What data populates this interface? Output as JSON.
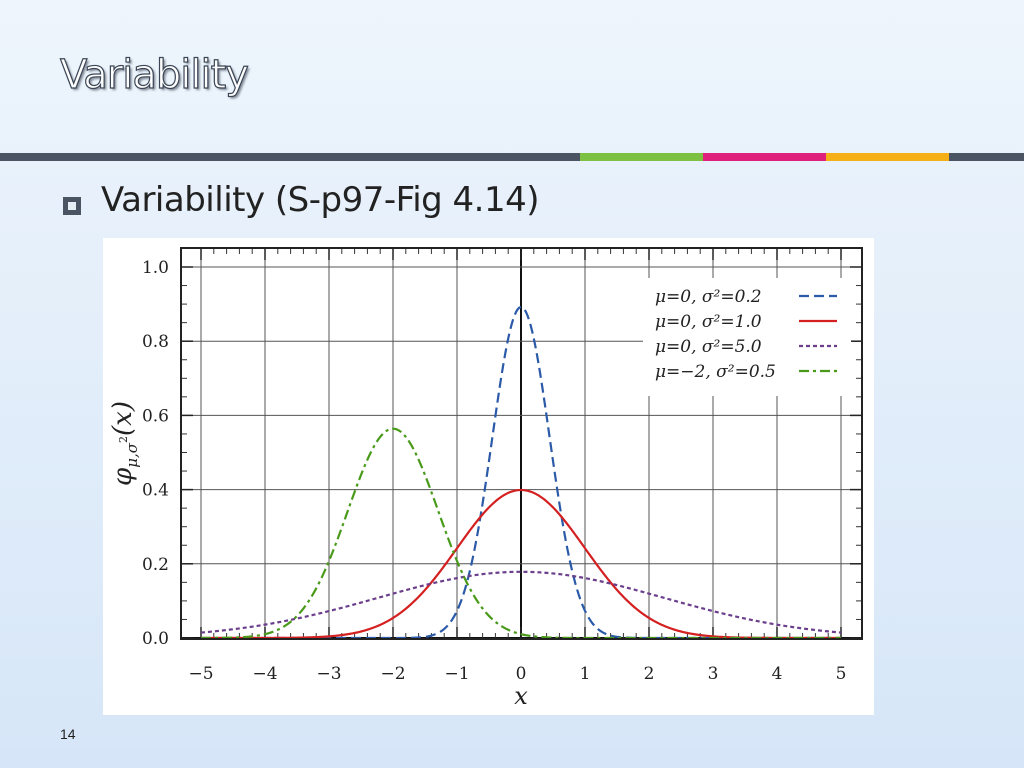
{
  "slide": {
    "title": "Variability",
    "bullet": "Variability (S-p97-Fig 4.14)",
    "page_number": "14",
    "accent_colors": [
      "#4a5462",
      "#7dc142",
      "#e0207d",
      "#f5b017",
      "#4a5462"
    ]
  },
  "chart_data": {
    "type": "line",
    "xlabel": "x",
    "ylabel_parts": {
      "base": "φ",
      "sub": "μ,σ",
      "sup": "2",
      "tail": "(x)"
    },
    "xlim": [
      -5,
      5
    ],
    "ylim": [
      0,
      1.0
    ],
    "x_ticks": [
      -5,
      -4,
      -3,
      -2,
      -1,
      0,
      1,
      2,
      3,
      4,
      5
    ],
    "x_tick_labels": [
      "−5",
      "−4",
      "−3",
      "−2",
      "−1",
      "0",
      "1",
      "2",
      "3",
      "4",
      "5"
    ],
    "y_ticks": [
      0.0,
      0.2,
      0.4,
      0.6,
      0.8,
      1.0
    ],
    "y_tick_labels": [
      "0.0",
      "0.2",
      "0.4",
      "0.6",
      "0.8",
      "1.0"
    ],
    "grid": true,
    "legend_position": "top-right",
    "series": [
      {
        "name": "μ=0,     σ²=0.2",
        "mu": 0,
        "var": 0.2,
        "color": "#2b5aa8",
        "dash": "dashed"
      },
      {
        "name": "μ=0,     σ²=1.0",
        "mu": 0,
        "var": 1.0,
        "color": "#d42020",
        "dash": "solid"
      },
      {
        "name": "μ=0,     σ²=5.0",
        "mu": 0,
        "var": 5.0,
        "color": "#6b3f8c",
        "dash": "dotted"
      },
      {
        "name": "μ=−2, σ²=0.5",
        "mu": -2,
        "var": 0.5,
        "color": "#4a9a1a",
        "dash": "dashdot"
      }
    ]
  }
}
